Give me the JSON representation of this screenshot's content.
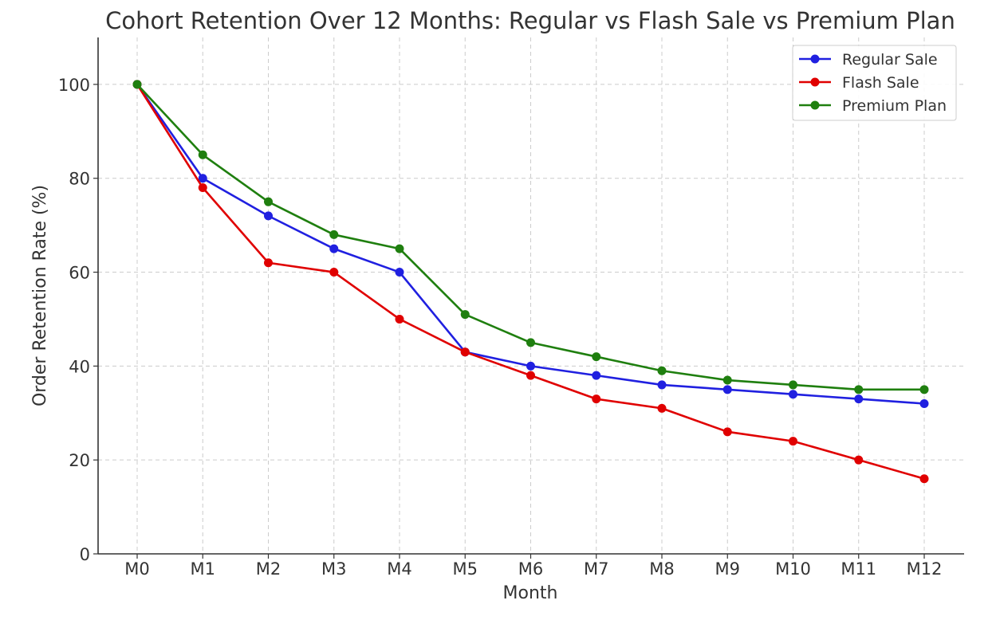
{
  "chart_data": {
    "type": "line",
    "title": "Cohort Retention Over 12 Months: Regular vs Flash Sale vs Premium Plan",
    "xlabel": "Month",
    "ylabel": "Order Retention Rate (%)",
    "categories": [
      "M0",
      "M1",
      "M2",
      "M3",
      "M4",
      "M5",
      "M6",
      "M7",
      "M8",
      "M9",
      "M10",
      "M11",
      "M12"
    ],
    "ylim": [
      0,
      110
    ],
    "yticks": [
      0,
      20,
      40,
      60,
      80,
      100
    ],
    "grid": true,
    "grid_style": "dashed",
    "legend_position": "top-right",
    "series": [
      {
        "name": "Regular Sale",
        "color": "#2020e0",
        "values": [
          100,
          80,
          72,
          65,
          60,
          43,
          40,
          38,
          36,
          35,
          34,
          33,
          32
        ]
      },
      {
        "name": "Flash Sale",
        "color": "#e00000",
        "values": [
          100,
          78,
          62,
          60,
          50,
          43,
          38,
          33,
          31,
          26,
          24,
          20,
          16
        ]
      },
      {
        "name": "Premium Plan",
        "color": "#1f7f0f",
        "values": [
          100,
          85,
          75,
          68,
          65,
          51,
          45,
          42,
          39,
          37,
          36,
          35,
          35
        ]
      }
    ]
  }
}
